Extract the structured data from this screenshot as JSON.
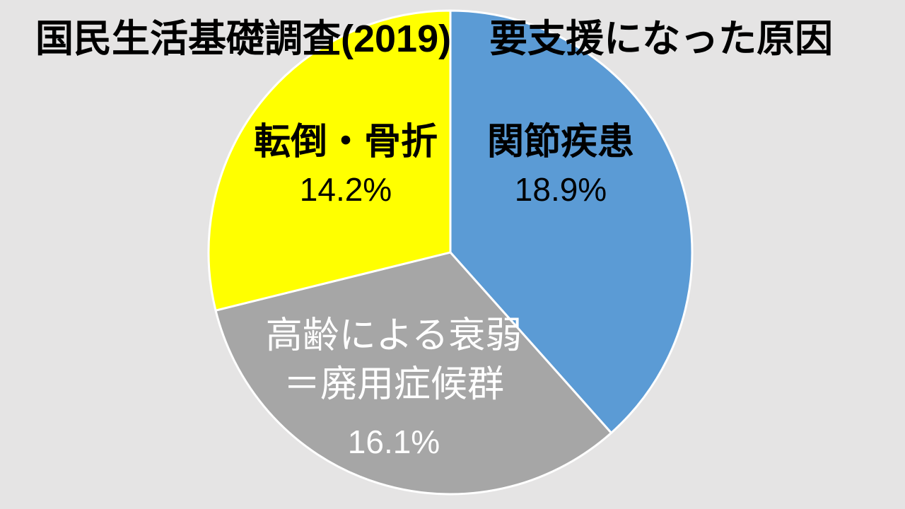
{
  "slide": {
    "background_color": "#E5E4E4"
  },
  "chart_data": {
    "type": "pie",
    "title": "国民生活基礎調査(2019)　要支援になった原因",
    "unit": "%",
    "start_angle_deg": 0,
    "direction": "clockwise",
    "legend_position": "none",
    "labels_on_slices": true,
    "slice_border_color": "#FFFFFF",
    "slices": [
      {
        "label": "関節疾患",
        "value": 18.9,
        "pct_label": "18.9%",
        "color": "#5B9BD5",
        "label_color": "#000000"
      },
      {
        "label": "高齢による衰弱＝廃用症候群",
        "label_line1": "高齢による衰弱",
        "label_line2": "＝廃用症候群",
        "value": 16.1,
        "pct_label": "16.1%",
        "color": "#A6A6A6",
        "label_color": "#FFFFFF"
      },
      {
        "label": "転倒・骨折",
        "value": 14.2,
        "pct_label": "14.2%",
        "color": "#FFFF00",
        "label_color": "#000000"
      }
    ]
  }
}
